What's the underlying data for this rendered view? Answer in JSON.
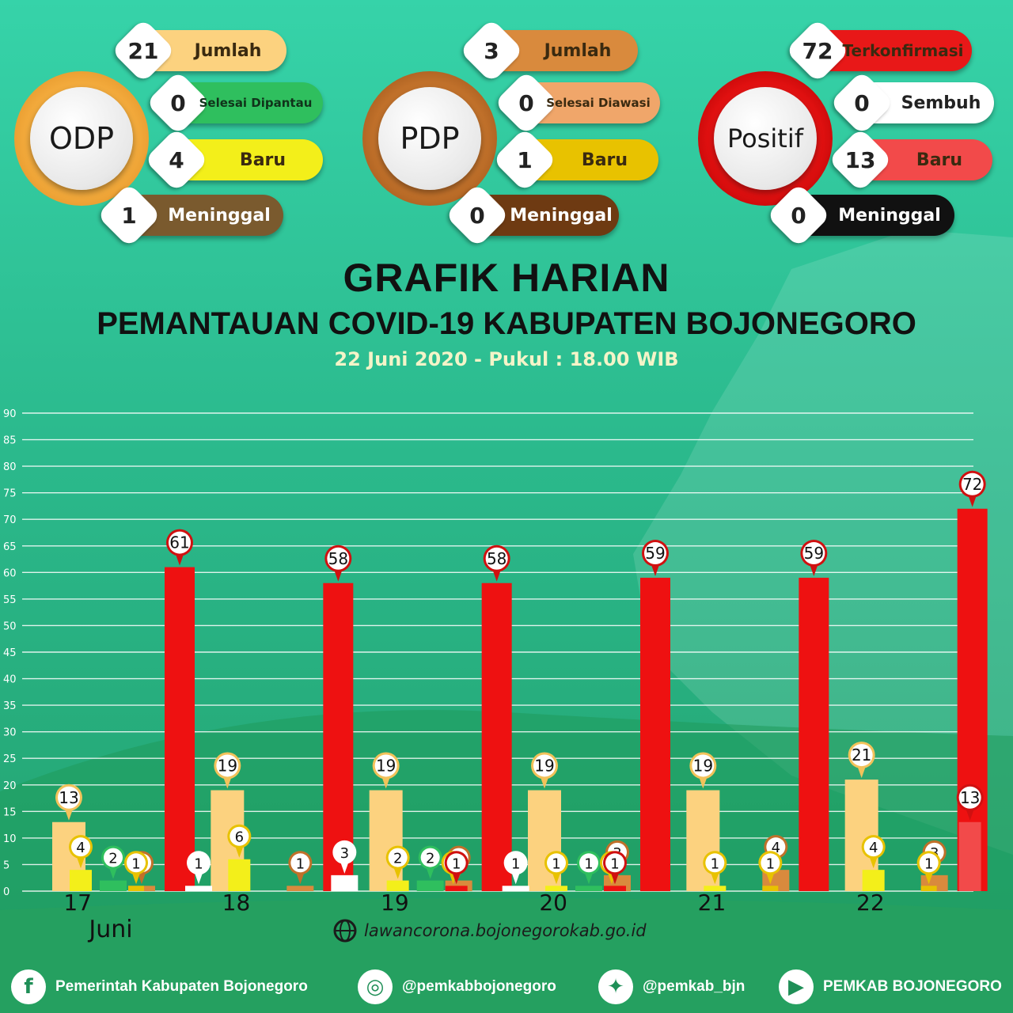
{
  "summaries": [
    {
      "label": "ODP",
      "color": "#f2a93b",
      "items": [
        {
          "value": "21",
          "label": "Jumlah",
          "bg": "#fcd27f",
          "text": "#3a2a10"
        },
        {
          "value": "0",
          "label": "Selesai Dipantau",
          "bg": "#2fbf5e",
          "text": "#10331a"
        },
        {
          "value": "4",
          "label": "Baru",
          "bg": "#f3ef1a",
          "text": "#333300"
        },
        {
          "value": "1",
          "label": "Meninggal",
          "bg": "#7a5a2e",
          "text": "#ffffff"
        }
      ]
    },
    {
      "label": "PDP",
      "color": "#c0702a",
      "items": [
        {
          "value": "3",
          "label": "Jumlah",
          "bg": "#d98a3d",
          "text": "#2a1600"
        },
        {
          "value": "0",
          "label": "Selesai Diawasi",
          "bg": "#f0a66a",
          "text": "#2a1600"
        },
        {
          "value": "1",
          "label": "Baru",
          "bg": "#e8c200",
          "text": "#2a2000"
        },
        {
          "value": "0",
          "label": "Meninggal",
          "bg": "#6e3a12",
          "text": "#ffffff"
        }
      ]
    },
    {
      "label": "Positif",
      "color": "#e01010",
      "items": [
        {
          "value": "72",
          "label": "Terkonfirmasi",
          "bg": "#e81818",
          "text": "#1a0000"
        },
        {
          "value": "0",
          "label": "Sembuh",
          "bg": "#ffffff",
          "text": "#222222"
        },
        {
          "value": "13",
          "label": "Baru",
          "bg": "#f24a4a",
          "text": "#1a0000"
        },
        {
          "value": "0",
          "label": "Meninggal",
          "bg": "#111111",
          "text": "#ffffff"
        }
      ]
    }
  ],
  "title": "GRAFIK HARIAN",
  "subtitle": "PEMANTAUAN COVID-19 KABUPATEN BOJONEGORO",
  "date_line": "22 Juni 2020 - Pukul : 18.00 WIB",
  "website": "lawancorona.bojonegorokab.go.id",
  "footer": [
    {
      "icon": "facebook-icon",
      "glyph": "f",
      "text": "Pemerintah Kabupaten Bojonegoro"
    },
    {
      "icon": "instagram-icon",
      "glyph": "◎",
      "text": "@pemkabbojonegoro"
    },
    {
      "icon": "twitter-icon",
      "glyph": "✦",
      "text": "@pemkab_bjn"
    },
    {
      "icon": "youtube-icon",
      "glyph": "▶",
      "text": "PEMKAB BOJONEGORO"
    }
  ],
  "chart_data": {
    "type": "bar",
    "ylim": [
      0,
      90
    ],
    "yticks": [
      0,
      5,
      10,
      15,
      20,
      25,
      30,
      35,
      40,
      45,
      50,
      55,
      60,
      65,
      70,
      75,
      80,
      85,
      90
    ],
    "categories": [
      "17",
      "18",
      "19",
      "20",
      "21",
      "22"
    ],
    "month_label": "Juni",
    "grid": true,
    "series": [
      {
        "key": "odp_total",
        "color": "#fcd27f",
        "values": [
          13,
          19,
          19,
          19,
          19,
          21
        ]
      },
      {
        "key": "odp_new",
        "color": "#f3ef1a",
        "values": [
          4,
          6,
          2,
          1,
          1,
          4
        ]
      },
      {
        "key": "odp_done",
        "color": "#2fbf5e",
        "values": [
          2,
          null,
          2,
          1,
          null,
          null
        ]
      },
      {
        "key": "pdp_total",
        "color": "#d98a3d",
        "values": [
          1,
          1,
          2,
          3,
          4,
          3
        ]
      },
      {
        "key": "pdp_new",
        "color": "#e8c200",
        "values": [
          1,
          null,
          1,
          1,
          1,
          1
        ]
      },
      {
        "key": "pos_total",
        "color": "#ee1111",
        "values": [
          61,
          58,
          58,
          59,
          59,
          72
        ]
      },
      {
        "key": "pos_small",
        "color": "#ee1111",
        "values": [
          null,
          null,
          1,
          1,
          null,
          null
        ]
      },
      {
        "key": "pos_new",
        "color": "#f24a4a",
        "values": [
          null,
          null,
          null,
          null,
          null,
          13
        ]
      },
      {
        "key": "white",
        "color": "#ffffff",
        "values": [
          1,
          3,
          1,
          null,
          null,
          null
        ]
      }
    ]
  }
}
